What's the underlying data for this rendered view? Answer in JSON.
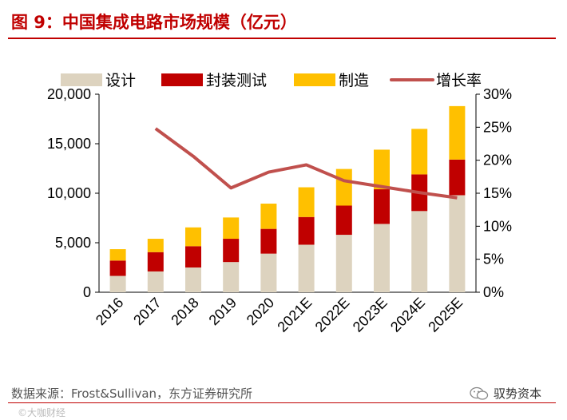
{
  "header": {
    "title": "图 9：中国集成电路市场规模（亿元）"
  },
  "footer": {
    "source": "数据来源：Frost&Sullivan，东方证券研究所",
    "watermark": "驭势资本",
    "corner_mark": "©大咖财经"
  },
  "colors": {
    "design": "#ddd3bf",
    "packaging": "#c00000",
    "manufacturing": "#ffc000",
    "growth": "#c0504d",
    "title": "#c00000"
  },
  "chart_data": {
    "type": "bar",
    "stacked": true,
    "categories": [
      "2016",
      "2017",
      "2018",
      "2019",
      "2020",
      "2021E",
      "2022E",
      "2023E",
      "2024E",
      "2025E"
    ],
    "series": [
      {
        "name": "设计",
        "kind": "bar",
        "values": [
          1650,
          2100,
          2500,
          3050,
          3900,
          4800,
          5800,
          6900,
          8200,
          9800
        ]
      },
      {
        "name": "封装测试",
        "kind": "bar",
        "values": [
          1550,
          1950,
          2150,
          2350,
          2500,
          2800,
          2950,
          3500,
          3700,
          3600
        ]
      },
      {
        "name": "制造",
        "kind": "bar",
        "values": [
          1150,
          1350,
          1900,
          2150,
          2550,
          3000,
          3700,
          4000,
          4600,
          5400
        ]
      },
      {
        "name": "增长率",
        "kind": "line",
        "axis": "right",
        "values": [
          null,
          24.8,
          20.6,
          15.8,
          18.2,
          19.3,
          16.9,
          16.0,
          15.1,
          14.3
        ]
      }
    ],
    "left_axis": {
      "min": 0,
      "max": 20000,
      "ticks": [
        "0",
        "5,000",
        "10,000",
        "15,000",
        "20,000"
      ]
    },
    "right_axis": {
      "min": 0,
      "max": 30,
      "ticks": [
        "0%",
        "5%",
        "10%",
        "15%",
        "20%",
        "25%",
        "30%"
      ]
    },
    "legend": [
      "设计",
      "封装测试",
      "制造",
      "增长率"
    ],
    "legend_position": "top"
  }
}
